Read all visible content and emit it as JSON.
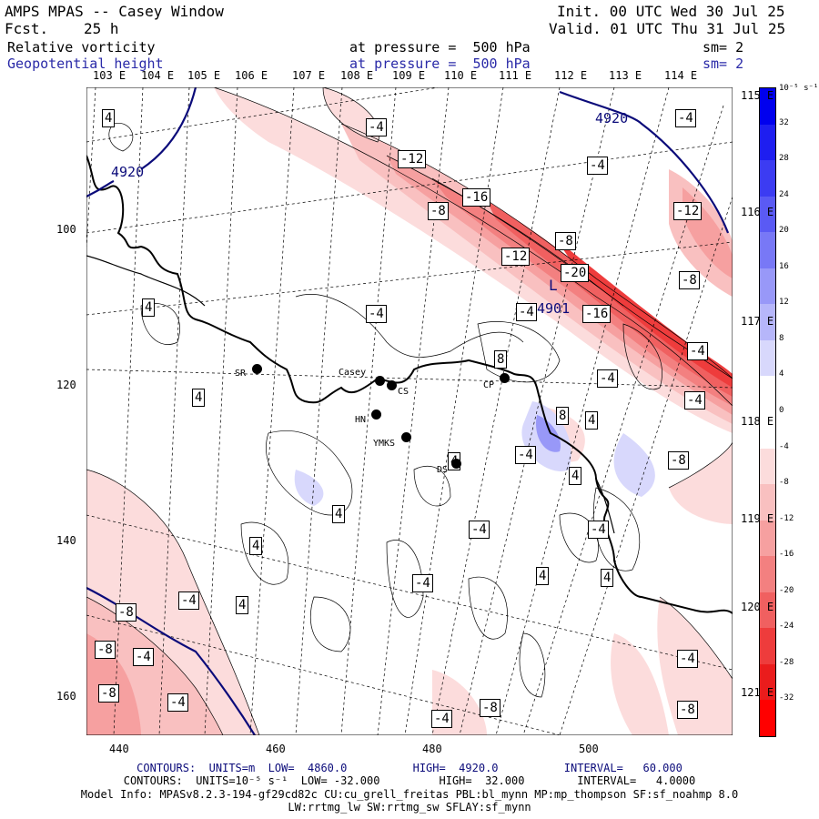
{
  "header": {
    "model": "AMPS MPAS -- Casey Window",
    "fcst_label": "Fcst.",
    "fcst_value": "25 h",
    "init": "Init. 00 UTC Wed 30 Jul 25",
    "valid": "Valid. 01 UTC Thu 31 Jul 25",
    "field1": "Relative vorticity",
    "field1_level": "at pressure =  500 hPa",
    "field1_sm": "sm= 2",
    "field2": "Geopotential height",
    "field2_level": "at pressure =  500 hPa",
    "field2_sm": "sm= 2"
  },
  "lon_labels": [
    "103 E",
    "104 E",
    "105 E",
    "106 E",
    "107 E",
    "108 E",
    "109 E",
    "110 E",
    "111 E",
    "112 E",
    "113 E",
    "114 E"
  ],
  "right_labels": [
    "115 E",
    "116 E",
    "117 E",
    "118 E",
    "119 E",
    "120 E",
    "121 E"
  ],
  "y_axis": [
    "100",
    "120",
    "140",
    "160"
  ],
  "x_axis": [
    "440",
    "460",
    "480",
    "500"
  ],
  "colorbar": {
    "unit": "10⁻⁵ s⁻¹",
    "ticks": [
      "32",
      "28",
      "24",
      "20",
      "16",
      "12",
      "8",
      "4",
      "0",
      "-4",
      "-8",
      "-12",
      "-16",
      "-20",
      "-24",
      "-28",
      "-32"
    ],
    "colors": [
      "#0000ee",
      "#1e1ef0",
      "#3c3cf2",
      "#5a5af4",
      "#7878f6",
      "#9898f8",
      "#b6b6fa",
      "#d8d8fc",
      "#ffffff",
      "#ffffff",
      "#fcdcdc",
      "#f9c0c0",
      "#f6a0a0",
      "#f38080",
      "#f06060",
      "#ee3c3c",
      "#ea1c1c",
      "#ff0000"
    ]
  },
  "stations": [
    {
      "name": "SR"
    },
    {
      "name": "Casey"
    },
    {
      "name": "CS"
    },
    {
      "name": "HN"
    },
    {
      "name": "YMKS"
    },
    {
      "name": "DS"
    },
    {
      "name": "CP"
    }
  ],
  "height_labels": [
    "4920",
    "4920",
    "4901"
  ],
  "low_marker": "L",
  "vort_labels": [
    "4",
    "-4",
    "-12",
    "-16",
    "-8",
    "-8",
    "-12",
    "-20",
    "-16",
    "-4",
    "-4",
    "-12",
    "-8",
    "4",
    "-4",
    "4",
    "-4",
    "-4",
    "8",
    "-4",
    "8",
    "4",
    "4",
    "-8",
    "4",
    "-4",
    "4",
    "4",
    "-4",
    "-4",
    "4",
    "4",
    "-4",
    "-8",
    "-8",
    "-4",
    "-8",
    "-4",
    "-8",
    "-4",
    "-4",
    "-8",
    "4",
    "-4",
    "-4"
  ],
  "footer": {
    "line1": "CONTOURS:  UNITS=m  LOW=  4860.0          HIGH=  4920.0          INTERVAL=   60.000",
    "line2": "CONTOURS:  UNITS=10⁻⁵ s⁻¹  LOW= -32.000         HIGH=  32.000        INTERVAL=   4.0000",
    "line3": "Model Info: MPASv8.2.3-194-gf29cd82c CU:cu_grell_freitas PBL:bl_mynn MP:mp_thompson SF:sf_noahmp 8.0",
    "line4": "LW:rrtmg_lw SW:rrtmg_sw SFLAY:sf_mynn"
  }
}
